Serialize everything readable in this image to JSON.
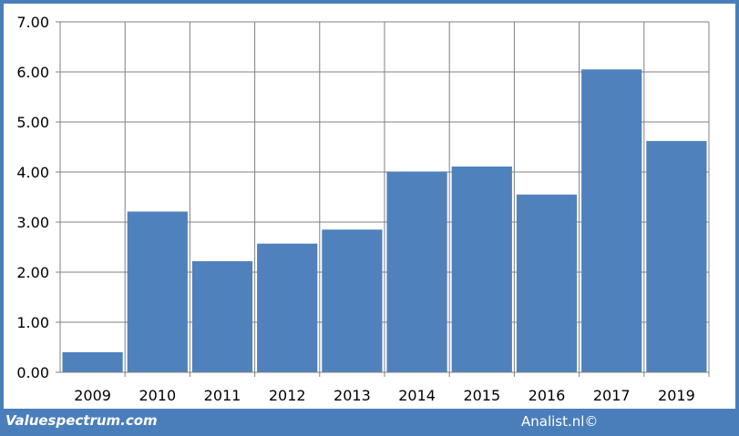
{
  "chart_data": {
    "type": "bar",
    "categories": [
      "2009",
      "2010",
      "2011",
      "2012",
      "2013",
      "2014",
      "2015",
      "2016",
      "2017",
      "2019"
    ],
    "values": [
      0.4,
      3.21,
      2.22,
      2.57,
      2.85,
      4.01,
      4.11,
      3.55,
      6.05,
      4.62
    ],
    "ylim": [
      0,
      7
    ],
    "yticks": [
      "0.00",
      "1.00",
      "2.00",
      "3.00",
      "4.00",
      "5.00",
      "6.00",
      "7.00"
    ],
    "grid": true,
    "bar_color": "#4f81bd"
  },
  "footer": {
    "source": "Valuespectrum.com",
    "credit": "Analist.nl©"
  },
  "colors": {
    "frame": "#4a7ebb",
    "grid": "#808080"
  }
}
